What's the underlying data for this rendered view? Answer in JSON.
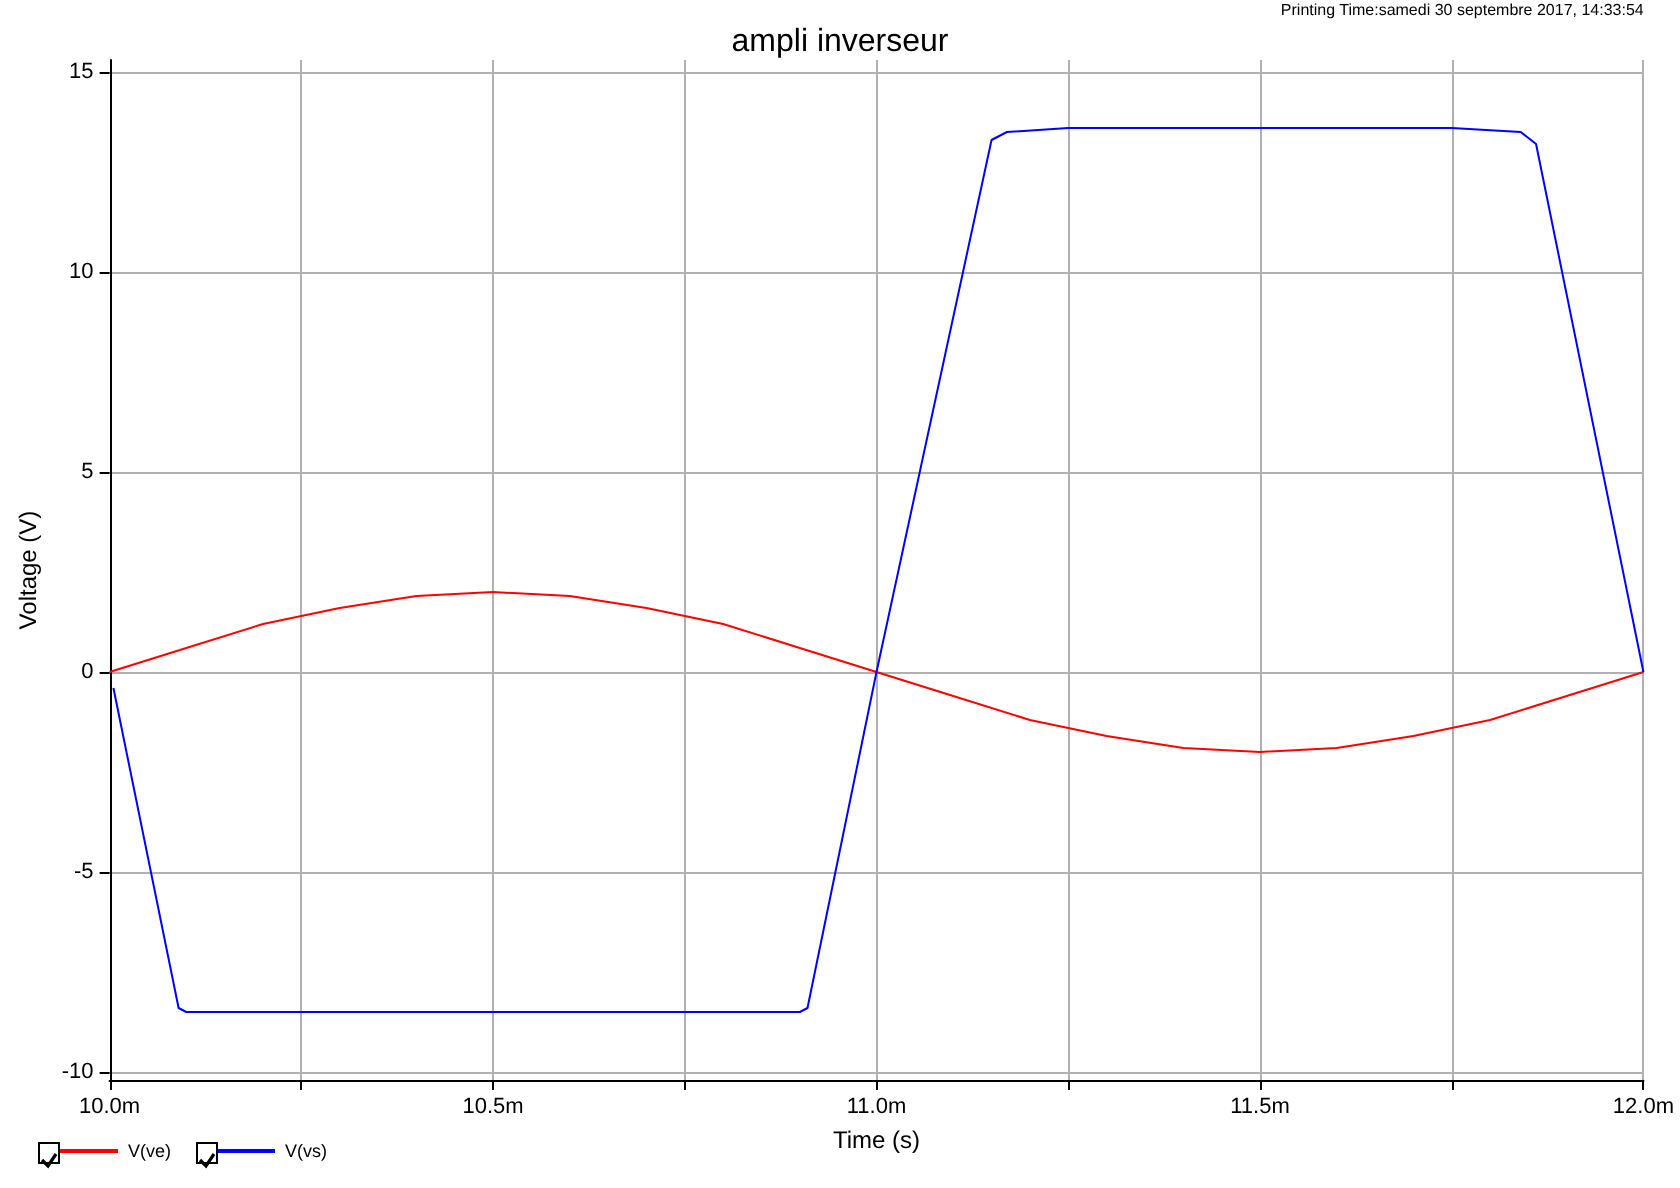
{
  "chart_data": {
    "type": "line",
    "title": "ampli inverseur",
    "xlabel": "Time (s)",
    "ylabel": "Voltage (V)",
    "annotations": [
      "Printing Time:samedi 30 septembre 2017, 14:33:54"
    ],
    "xlim": [
      10.0,
      12.0
    ],
    "xticks": [
      {
        "value": 10.0,
        "label": "10.0m"
      },
      {
        "value": 10.25,
        "label": null
      },
      {
        "value": 10.5,
        "label": "10.5m"
      },
      {
        "value": 10.75,
        "label": null
      },
      {
        "value": 11.0,
        "label": "11.0m"
      },
      {
        "value": 11.25,
        "label": null
      },
      {
        "value": 11.5,
        "label": "11.5m"
      },
      {
        "value": 11.75,
        "label": null
      },
      {
        "value": 12.0,
        "label": "12.0m"
      }
    ],
    "ylim": [
      -10.2,
      15.3
    ],
    "yticks": [
      -10,
      -5,
      0,
      5,
      10,
      15
    ],
    "grid": true,
    "legend": "bottom left",
    "marker": "none",
    "line_style": "solid",
    "series": [
      {
        "name": "V(ve)",
        "color": "#ff0000",
        "x": [
          10.0,
          10.1,
          10.2,
          10.3,
          10.4,
          10.5,
          10.6,
          10.7,
          10.8,
          10.9,
          11.0,
          11.1,
          11.2,
          11.3,
          11.4,
          11.5,
          11.6,
          11.7,
          11.8,
          11.9,
          12.0
        ],
        "values": [
          0,
          0.6,
          1.2,
          1.6,
          1.9,
          2.0,
          1.9,
          1.6,
          1.2,
          0.6,
          0,
          -0.6,
          -1.2,
          -1.6,
          -1.9,
          -2.0,
          -1.9,
          -1.6,
          -1.2,
          -0.6,
          0
        ]
      },
      {
        "name": "V(vs)",
        "color": "#0000ff",
        "x": [
          10.005,
          10.09,
          10.1,
          10.9,
          10.91,
          11.0,
          11.15,
          11.17,
          11.25,
          11.75,
          11.84,
          11.86,
          12.0
        ],
        "values": [
          -0.4,
          -8.4,
          -8.5,
          -8.5,
          -8.4,
          0,
          13.3,
          13.5,
          13.6,
          13.6,
          13.5,
          13.2,
          0
        ]
      }
    ]
  }
}
